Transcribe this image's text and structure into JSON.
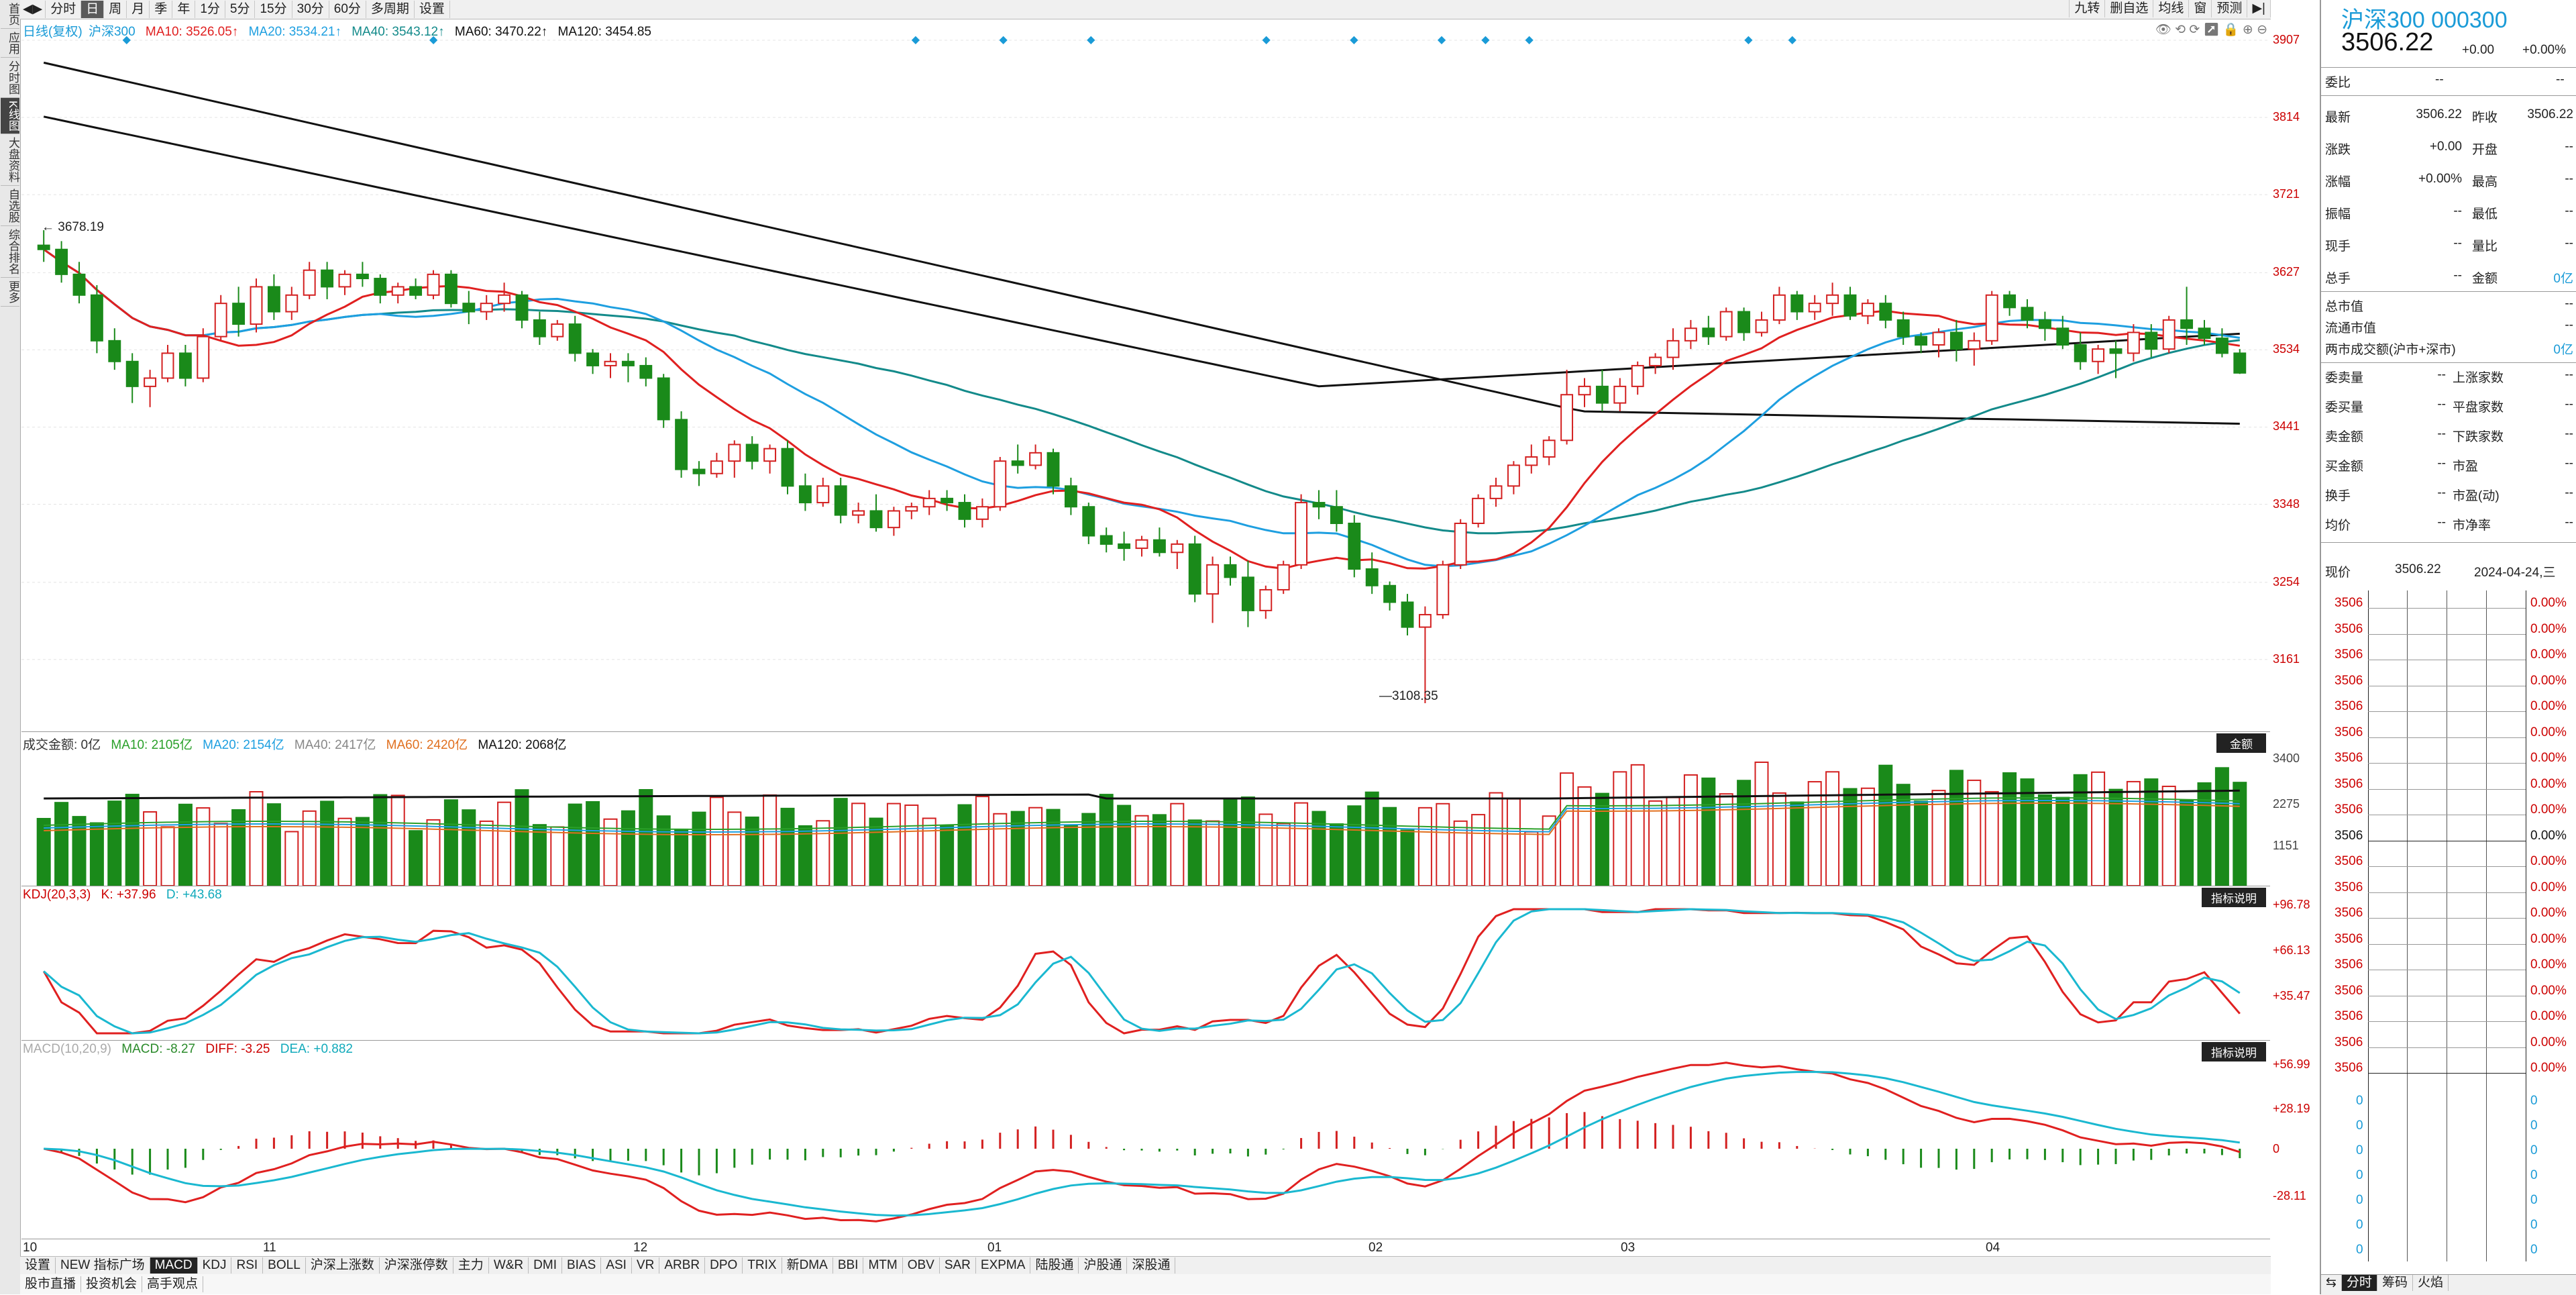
{
  "left_nav": [
    "首页",
    "应用",
    "分时图",
    "K线图",
    "大盘资料",
    "自选股",
    "综合排名",
    "更多"
  ],
  "toolbar": {
    "periods": [
      "分时",
      "日",
      "周",
      "月",
      "季",
      "年",
      "1分",
      "5分",
      "15分",
      "30分",
      "60分",
      "多周期",
      "设置"
    ],
    "right_buttons": [
      "九转",
      "删自选",
      "均线",
      "窗",
      "预测"
    ]
  },
  "main_legend": {
    "label": "日线(复权)",
    "name": "沪深300",
    "ma10": "MA10: 3526.05↑",
    "ma20": "MA20: 3534.21↑",
    "ma40": "MA40: 3543.12↑",
    "ma60": "MA60: 3470.22↑",
    "ma120": "MA120: 3454.85"
  },
  "price_axis": [
    "3907",
    "3814",
    "3721",
    "3627",
    "3534",
    "3441",
    "3348",
    "3254",
    "3161"
  ],
  "price_high_label": "3678.19",
  "price_low_label": "3108.35",
  "volume_legend": {
    "title": "成交金额: 0亿",
    "ma10": "MA10: 2105亿",
    "ma20": "MA20: 2154亿",
    "ma40": "MA40: 2417亿",
    "ma60": "MA60: 2420亿",
    "ma120": "MA120: 2068亿",
    "badge": "金额"
  },
  "volume_axis": [
    "3400",
    "2275",
    "1151"
  ],
  "kdj_legend": {
    "title": "KDJ(20,3,3)",
    "k": "K: +37.96",
    "d": "D: +43.68",
    "badge": "指标说明"
  },
  "kdj_axis": [
    "+96.78",
    "+66.13",
    "+35.47"
  ],
  "macd_legend": {
    "title": "MACD(10,20,9)",
    "macd": "MACD: -8.27",
    "diff": "DIFF: -3.25",
    "dea": "DEA: +0.882",
    "badge": "指标说明"
  },
  "macd_axis": [
    "+56.99",
    "+28.19",
    "0",
    "-28.11"
  ],
  "months": [
    "10",
    "11",
    "12",
    "01",
    "02",
    "03",
    "04"
  ],
  "bottom_tabs": [
    "设置",
    "NEW 指标广场",
    "MACD",
    "KDJ",
    "RSI",
    "BOLL",
    "沪深上涨数",
    "沪深涨停数",
    "主力",
    "W&R",
    "DMI",
    "BIAS",
    "ASI",
    "VR",
    "ARBR",
    "DPO",
    "TRIX",
    "新DMA",
    "BBI",
    "MTM",
    "OBV",
    "SAR",
    "EXPMA",
    "陆股通",
    "沪股通",
    "深股通"
  ],
  "bottom_links": [
    "股市直播",
    "投资机会",
    "高手观点"
  ],
  "right_panel": {
    "title": "沪深300 000300",
    "price": "3506.22",
    "change": "+0.00",
    "change_pct": "+0.00%",
    "weibi_label": "委比",
    "weibi_val1": "--",
    "weibi_val2": "--",
    "stats": [
      [
        "最新",
        "3506.22",
        "昨收",
        "3506.22"
      ],
      [
        "涨跌",
        "+0.00",
        "开盘",
        "--"
      ],
      [
        "涨幅",
        "+0.00%",
        "最高",
        "--"
      ],
      [
        "振幅",
        "--",
        "最低",
        "--"
      ],
      [
        "现手",
        "--",
        "量比",
        "--"
      ],
      [
        "总手",
        "--",
        "金额",
        "0亿"
      ]
    ],
    "mkt": [
      [
        "总市值",
        "--"
      ],
      [
        "流通市值",
        "--"
      ],
      [
        "两市成交额(沪市+深市)",
        "0亿"
      ]
    ],
    "orders": [
      [
        "委卖量",
        "--",
        "上涨家数",
        "--"
      ],
      [
        "委买量",
        "--",
        "平盘家数",
        "--"
      ],
      [
        "卖金额",
        "--",
        "下跌家数",
        "--"
      ],
      [
        "买金额",
        "--",
        "市盈",
        "--"
      ],
      [
        "换手",
        "--",
        "市盈(动)",
        "--"
      ],
      [
        "均价",
        "--",
        "市净率",
        "--"
      ]
    ],
    "now_label": "现价",
    "now_price": "3506.22",
    "now_date": "2024-04-24,三",
    "ladder_price": "3506",
    "ladder_pct": "0.00%",
    "ladder_zero": "0",
    "bottom_tabs": [
      "分时",
      "筹码",
      "火焰"
    ]
  },
  "chart_data": {
    "type": "candlestick",
    "price_range": [
      3108.35,
      3907
    ],
    "candles": [
      [
        3660,
        3678.19,
        3640,
        3655
      ],
      [
        3655,
        3665,
        3615,
        3625
      ],
      [
        3625,
        3640,
        3590,
        3600
      ],
      [
        3600,
        3612,
        3530,
        3545
      ],
      [
        3545,
        3560,
        3510,
        3520
      ],
      [
        3520,
        3530,
        3470,
        3490
      ],
      [
        3490,
        3510,
        3465,
        3500
      ],
      [
        3500,
        3540,
        3495,
        3530
      ],
      [
        3530,
        3540,
        3490,
        3500
      ],
      [
        3500,
        3560,
        3495,
        3550
      ],
      [
        3550,
        3600,
        3545,
        3590
      ],
      [
        3590,
        3610,
        3550,
        3565
      ],
      [
        3565,
        3620,
        3555,
        3610
      ],
      [
        3610,
        3625,
        3570,
        3580
      ],
      [
        3580,
        3610,
        3570,
        3600
      ],
      [
        3600,
        3640,
        3595,
        3630
      ],
      [
        3630,
        3640,
        3595,
        3610
      ],
      [
        3610,
        3630,
        3600,
        3625
      ],
      [
        3625,
        3640,
        3610,
        3620
      ],
      [
        3620,
        3625,
        3590,
        3600
      ],
      [
        3600,
        3615,
        3590,
        3610
      ],
      [
        3610,
        3620,
        3595,
        3600
      ],
      [
        3600,
        3630,
        3595,
        3625
      ],
      [
        3625,
        3630,
        3585,
        3590
      ],
      [
        3590,
        3605,
        3565,
        3580
      ],
      [
        3580,
        3600,
        3570,
        3590
      ],
      [
        3590,
        3615,
        3580,
        3600
      ],
      [
        3600,
        3605,
        3560,
        3570
      ],
      [
        3570,
        3580,
        3540,
        3550
      ],
      [
        3550,
        3570,
        3545,
        3565
      ],
      [
        3565,
        3575,
        3520,
        3530
      ],
      [
        3530,
        3535,
        3505,
        3515
      ],
      [
        3515,
        3530,
        3500,
        3520
      ],
      [
        3520,
        3530,
        3495,
        3515
      ],
      [
        3515,
        3525,
        3490,
        3500
      ],
      [
        3500,
        3505,
        3440,
        3450
      ],
      [
        3450,
        3460,
        3380,
        3390
      ],
      [
        3390,
        3400,
        3370,
        3385
      ],
      [
        3385,
        3410,
        3380,
        3400
      ],
      [
        3400,
        3425,
        3380,
        3420
      ],
      [
        3420,
        3430,
        3390,
        3400
      ],
      [
        3400,
        3420,
        3385,
        3415
      ],
      [
        3415,
        3425,
        3360,
        3370
      ],
      [
        3370,
        3385,
        3340,
        3350
      ],
      [
        3350,
        3380,
        3345,
        3370
      ],
      [
        3370,
        3380,
        3325,
        3335
      ],
      [
        3335,
        3350,
        3325,
        3340
      ],
      [
        3340,
        3360,
        3315,
        3320
      ],
      [
        3320,
        3345,
        3310,
        3340
      ],
      [
        3340,
        3350,
        3330,
        3345
      ],
      [
        3345,
        3365,
        3335,
        3355
      ],
      [
        3355,
        3365,
        3340,
        3350
      ],
      [
        3350,
        3360,
        3320,
        3330
      ],
      [
        3330,
        3355,
        3320,
        3345
      ],
      [
        3345,
        3405,
        3340,
        3400
      ],
      [
        3400,
        3420,
        3385,
        3395
      ],
      [
        3395,
        3420,
        3390,
        3410
      ],
      [
        3410,
        3415,
        3360,
        3370
      ],
      [
        3370,
        3380,
        3335,
        3345
      ],
      [
        3345,
        3350,
        3300,
        3310
      ],
      [
        3310,
        3320,
        3290,
        3300
      ],
      [
        3300,
        3315,
        3280,
        3295
      ],
      [
        3295,
        3310,
        3285,
        3305
      ],
      [
        3305,
        3320,
        3285,
        3290
      ],
      [
        3290,
        3305,
        3270,
        3300
      ],
      [
        3300,
        3310,
        3230,
        3240
      ],
      [
        3240,
        3285,
        3205,
        3275
      ],
      [
        3275,
        3285,
        3250,
        3260
      ],
      [
        3260,
        3280,
        3200,
        3220
      ],
      [
        3220,
        3250,
        3210,
        3245
      ],
      [
        3245,
        3280,
        3240,
        3275
      ],
      [
        3275,
        3360,
        3270,
        3350
      ],
      [
        3350,
        3365,
        3330,
        3345
      ],
      [
        3345,
        3365,
        3315,
        3325
      ],
      [
        3325,
        3335,
        3260,
        3270
      ],
      [
        3270,
        3290,
        3240,
        3250
      ],
      [
        3250,
        3255,
        3220,
        3230
      ],
      [
        3230,
        3240,
        3190,
        3200
      ],
      [
        3200,
        3225,
        3108.35,
        3215
      ],
      [
        3215,
        3280,
        3210,
        3275
      ],
      [
        3275,
        3330,
        3270,
        3325
      ],
      [
        3325,
        3360,
        3320,
        3355
      ],
      [
        3355,
        3380,
        3345,
        3370
      ],
      [
        3370,
        3400,
        3360,
        3395
      ],
      [
        3395,
        3420,
        3385,
        3405
      ],
      [
        3405,
        3430,
        3395,
        3425
      ],
      [
        3425,
        3510,
        3420,
        3480
      ],
      [
        3480,
        3500,
        3465,
        3490
      ],
      [
        3490,
        3510,
        3460,
        3470
      ],
      [
        3470,
        3500,
        3460,
        3490
      ],
      [
        3490,
        3520,
        3480,
        3515
      ],
      [
        3515,
        3530,
        3505,
        3525
      ],
      [
        3525,
        3560,
        3510,
        3545
      ],
      [
        3545,
        3570,
        3535,
        3560
      ],
      [
        3560,
        3575,
        3540,
        3550
      ],
      [
        3550,
        3585,
        3545,
        3580
      ],
      [
        3580,
        3585,
        3545,
        3555
      ],
      [
        3555,
        3580,
        3550,
        3570
      ],
      [
        3570,
        3610,
        3565,
        3600
      ],
      [
        3600,
        3605,
        3570,
        3580
      ],
      [
        3580,
        3600,
        3570,
        3590
      ],
      [
        3590,
        3615,
        3575,
        3600
      ],
      [
        3600,
        3610,
        3570,
        3575
      ],
      [
        3575,
        3595,
        3565,
        3590
      ],
      [
        3590,
        3600,
        3560,
        3570
      ],
      [
        3570,
        3580,
        3540,
        3550
      ],
      [
        3550,
        3555,
        3530,
        3540
      ],
      [
        3540,
        3560,
        3525,
        3555
      ],
      [
        3555,
        3570,
        3520,
        3535
      ],
      [
        3535,
        3555,
        3515,
        3545
      ],
      [
        3545,
        3605,
        3540,
        3600
      ],
      [
        3600,
        3605,
        3575,
        3585
      ],
      [
        3585,
        3595,
        3560,
        3570
      ],
      [
        3570,
        3580,
        3545,
        3560
      ],
      [
        3560,
        3575,
        3535,
        3540
      ],
      [
        3540,
        3555,
        3510,
        3520
      ],
      [
        3520,
        3540,
        3505,
        3535
      ],
      [
        3535,
        3545,
        3500,
        3530
      ],
      [
        3530,
        3565,
        3520,
        3555
      ],
      [
        3555,
        3565,
        3525,
        3535
      ],
      [
        3535,
        3575,
        3530,
        3570
      ],
      [
        3570,
        3610,
        3540,
        3560
      ],
      [
        3560,
        3570,
        3540,
        3548
      ],
      [
        3548,
        3560,
        3525,
        3530
      ],
      [
        3530,
        3535,
        3505,
        3506.22
      ]
    ]
  }
}
